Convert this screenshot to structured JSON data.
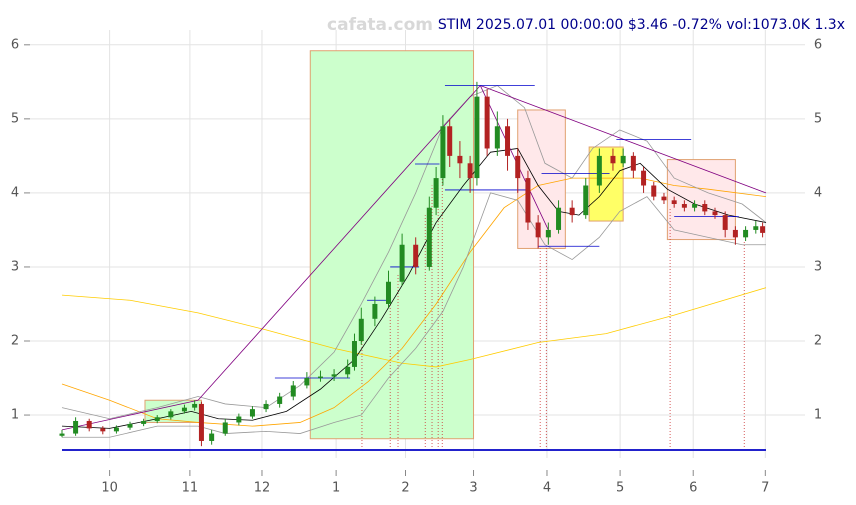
{
  "chart_data": {
    "type": "candlestick",
    "title": "STIM 2025.07.01 00:00:00 $3.46 -0.72% vol:1073.0K 1.3x",
    "watermark": "cafata.com",
    "up_color": "#228b22",
    "down_color": "#b22222",
    "x": [
      0,
      4,
      8,
      12,
      16,
      20,
      24,
      28,
      32,
      36,
      39,
      41,
      44,
      48,
      52,
      56,
      60,
      64,
      68,
      72,
      76,
      80,
      84,
      86,
      88,
      92,
      96,
      100,
      104,
      108,
      110,
      112,
      114,
      117,
      120,
      122,
      125,
      128,
      131,
      134,
      137,
      140,
      143,
      146,
      150,
      154,
      158,
      162,
      165,
      168,
      171,
      174,
      177,
      180,
      183,
      186,
      189,
      192,
      195,
      198,
      201,
      204,
      206
    ],
    "open": [
      0.72,
      0.75,
      0.92,
      0.82,
      0.78,
      0.83,
      0.88,
      0.92,
      0.97,
      1.05,
      1.1,
      1.15,
      0.65,
      0.75,
      0.9,
      0.98,
      1.08,
      1.15,
      1.25,
      1.4,
      1.5,
      1.52,
      1.55,
      1.65,
      2.0,
      2.3,
      2.5,
      2.8,
      3.3,
      3.0,
      3.8,
      4.2,
      4.9,
      4.5,
      4.4,
      4.2,
      5.3,
      4.6,
      4.9,
      4.5,
      4.2,
      3.6,
      3.4,
      3.5,
      3.8,
      3.7,
      4.1,
      4.5,
      4.4,
      4.5,
      4.3,
      4.1,
      3.95,
      3.9,
      3.85,
      3.8,
      3.85,
      3.75,
      3.7,
      3.5,
      3.4,
      3.5,
      3.55
    ],
    "high": [
      0.8,
      0.97,
      0.95,
      0.85,
      0.86,
      0.91,
      0.95,
      1.0,
      1.08,
      1.14,
      1.2,
      1.18,
      0.8,
      0.95,
      1.02,
      1.12,
      1.2,
      1.3,
      1.46,
      1.58,
      1.6,
      1.62,
      1.75,
      2.1,
      2.45,
      2.6,
      2.95,
      3.45,
      3.4,
      3.95,
      4.35,
      5.05,
      5.0,
      4.7,
      4.5,
      5.5,
      5.4,
      5.1,
      5.0,
      4.6,
      4.3,
      3.7,
      3.6,
      3.9,
      3.9,
      4.2,
      4.6,
      4.6,
      4.6,
      4.55,
      4.35,
      4.15,
      4.0,
      3.95,
      3.9,
      3.9,
      3.9,
      3.8,
      3.75,
      3.55,
      3.55,
      3.62,
      3.6
    ],
    "low": [
      0.7,
      0.72,
      0.78,
      0.74,
      0.75,
      0.8,
      0.85,
      0.89,
      0.94,
      1.02,
      1.06,
      0.58,
      0.6,
      0.72,
      0.86,
      0.95,
      1.04,
      1.1,
      1.2,
      1.36,
      1.45,
      1.46,
      1.5,
      1.6,
      1.95,
      2.2,
      2.45,
      2.75,
      2.9,
      2.95,
      3.7,
      4.1,
      4.35,
      4.2,
      4.0,
      4.1,
      4.5,
      4.5,
      4.3,
      4.0,
      3.5,
      3.25,
      3.3,
      3.45,
      3.6,
      3.65,
      4.0,
      4.3,
      4.35,
      4.2,
      4.0,
      3.9,
      3.85,
      3.8,
      3.75,
      3.75,
      3.7,
      3.65,
      3.4,
      3.3,
      3.35,
      3.45,
      3.4
    ],
    "close": [
      0.75,
      0.92,
      0.82,
      0.78,
      0.83,
      0.88,
      0.92,
      0.97,
      1.05,
      1.1,
      1.15,
      0.65,
      0.75,
      0.9,
      0.98,
      1.08,
      1.15,
      1.25,
      1.4,
      1.5,
      1.52,
      1.55,
      1.65,
      2.0,
      2.3,
      2.5,
      2.8,
      3.3,
      3.0,
      3.8,
      4.2,
      4.9,
      4.5,
      4.4,
      4.2,
      5.3,
      4.6,
      4.9,
      4.5,
      4.2,
      3.6,
      3.4,
      3.5,
      3.8,
      3.7,
      4.1,
      4.5,
      4.4,
      4.5,
      4.3,
      4.1,
      3.95,
      3.9,
      3.85,
      3.8,
      3.85,
      3.75,
      3.7,
      3.5,
      3.4,
      3.5,
      3.55,
      3.46
    ],
    "xlim": [
      0,
      207
    ],
    "xticks": [
      {
        "value": 14,
        "label": "10"
      },
      {
        "value": 37.6,
        "label": "11"
      },
      {
        "value": 58.8,
        "label": "12"
      },
      {
        "value": 80.6,
        "label": "1"
      },
      {
        "value": 101,
        "label": "2"
      },
      {
        "value": 121,
        "label": "3"
      },
      {
        "value": 142.6,
        "label": "4"
      },
      {
        "value": 164.1,
        "label": "5"
      },
      {
        "value": 185.6,
        "label": "6"
      },
      {
        "value": 206.8,
        "label": "7"
      }
    ],
    "ylim": [
      0.42,
      6.2
    ],
    "yticks": [
      1,
      2,
      3,
      4,
      5,
      6
    ],
    "grid": true,
    "zones": [
      {
        "x": [
          73,
          121
        ],
        "y": [
          0.68,
          5.92
        ],
        "color": "#ccffcc"
      },
      {
        "x": [
          24.4,
          41
        ],
        "y": [
          0.9,
          1.2
        ],
        "color": "#ccffcc"
      },
      {
        "x": [
          134,
          148
        ],
        "y": [
          3.25,
          5.12
        ],
        "color": "#ffe8ea"
      },
      {
        "x": [
          155,
          165
        ],
        "y": [
          3.62,
          4.62
        ],
        "color": "#ffff66"
      },
      {
        "x": [
          178,
          198
        ],
        "y": [
          3.37,
          4.45
        ],
        "color": "#ffe8ea"
      }
    ],
    "lines": [
      {
        "color": "#ffcc00",
        "x": [
          0,
          20,
          40,
          60,
          80,
          100,
          110,
          120,
          140,
          160,
          180,
          207
        ],
        "values": [
          2.62,
          2.55,
          2.38,
          2.15,
          1.9,
          1.7,
          1.65,
          1.75,
          1.98,
          2.1,
          2.35,
          2.72
        ]
      },
      {
        "color": "#ffa500",
        "x": [
          0,
          14,
          28,
          40,
          56,
          70,
          80,
          90,
          100,
          110,
          120,
          130,
          140,
          150,
          160,
          170,
          180,
          190,
          207
        ],
        "values": [
          1.42,
          1.2,
          0.95,
          0.9,
          0.85,
          0.9,
          1.1,
          1.45,
          1.9,
          2.5,
          3.2,
          3.8,
          4.1,
          4.2,
          4.2,
          4.2,
          4.1,
          4.05,
          3.95
        ]
      },
      {
        "color": "#999999",
        "x": [
          0,
          14,
          28,
          40,
          48,
          60,
          70,
          80,
          88,
          96,
          104,
          112,
          120,
          128,
          136,
          142,
          150,
          156,
          164,
          172,
          180,
          190,
          200,
          207
        ],
        "values": [
          1.1,
          0.95,
          1.1,
          1.25,
          1.15,
          1.1,
          1.4,
          1.85,
          2.5,
          3.2,
          4.0,
          4.9,
          5.3,
          5.45,
          5.15,
          4.4,
          4.2,
          4.6,
          4.85,
          4.7,
          4.2,
          4.0,
          3.85,
          3.6
        ]
      },
      {
        "color": "#999999",
        "x": [
          0,
          14,
          28,
          40,
          48,
          60,
          70,
          80,
          88,
          96,
          104,
          112,
          118,
          126,
          134,
          142,
          150,
          158,
          164,
          172,
          180,
          190,
          200,
          207
        ],
        "values": [
          0.7,
          0.7,
          0.85,
          0.85,
          0.75,
          0.78,
          0.75,
          0.9,
          1.0,
          1.5,
          1.9,
          2.4,
          3.0,
          4.0,
          3.9,
          3.3,
          3.1,
          3.4,
          3.75,
          3.95,
          3.5,
          3.4,
          3.3,
          3.3
        ]
      },
      {
        "color": "#000000",
        "x": [
          0,
          14,
          28,
          38,
          46,
          56,
          66,
          76,
          86,
          94,
          102,
          110,
          118,
          126,
          134,
          140,
          146,
          152,
          158,
          164,
          170,
          178,
          186,
          196,
          207
        ],
        "values": [
          0.85,
          0.82,
          0.95,
          1.05,
          0.95,
          0.93,
          1.05,
          1.35,
          1.75,
          2.3,
          2.9,
          3.6,
          4.1,
          4.55,
          4.6,
          4.1,
          3.75,
          3.7,
          3.95,
          4.3,
          4.4,
          4.05,
          3.85,
          3.7,
          3.6
        ]
      }
    ],
    "trendlines": [
      {
        "color": "#800080",
        "x": [
          0,
          40
        ],
        "y": [
          0.8,
          1.2
        ]
      },
      {
        "color": "#800080",
        "x": [
          40,
          123
        ],
        "y": [
          1.2,
          5.45
        ]
      },
      {
        "color": "#800080",
        "x": [
          123,
          207
        ],
        "y": [
          5.45,
          4.0
        ]
      },
      {
        "color": "#800080",
        "x": [
          123,
          143
        ],
        "y": [
          5.45,
          3.5
        ]
      }
    ],
    "segments": [
      {
        "color": "#0000cc",
        "x": [
          112.6,
          139
        ],
        "y": 5.45
      },
      {
        "color": "#0000cc",
        "x": [
          103.8,
          111
        ],
        "y": 4.39
      },
      {
        "color": "#0000cc",
        "x": [
          96.5,
          105
        ],
        "y": 3.0
      },
      {
        "color": "#0000cc",
        "x": [
          89.7,
          96.5
        ],
        "y": 2.55
      },
      {
        "color": "#0000cc",
        "x": [
          62.6,
          84.7
        ],
        "y": 1.5
      },
      {
        "color": "#0000cc",
        "x": [
          112.6,
          137.6
        ],
        "y": 4.04
      },
      {
        "color": "#0000cc",
        "x": [
          141,
          161
        ],
        "y": 4.26
      },
      {
        "color": "#0000cc",
        "x": [
          163,
          185
        ],
        "y": 4.72
      },
      {
        "color": "#0000cc",
        "x": [
          180,
          199
        ],
        "y": 3.68
      },
      {
        "color": "#0000cc",
        "x": [
          140,
          158
        ],
        "y": 3.28
      }
    ],
    "markers": [
      {
        "x": 88.2,
        "y": 2.2
      },
      {
        "x": 96.5,
        "y": 2.75
      },
      {
        "x": 98.8,
        "y": 2.9
      },
      {
        "x": 106.8,
        "y": 3.7
      },
      {
        "x": 108.8,
        "y": 4.1
      },
      {
        "x": 110.6,
        "y": 4.1
      },
      {
        "x": 111.8,
        "y": 4.35
      },
      {
        "x": 140.6,
        "y": 3.25
      },
      {
        "x": 142.4,
        "y": 3.3
      },
      {
        "x": 178.8,
        "y": 3.8
      },
      {
        "x": 200.6,
        "y": 3.35
      }
    ]
  }
}
